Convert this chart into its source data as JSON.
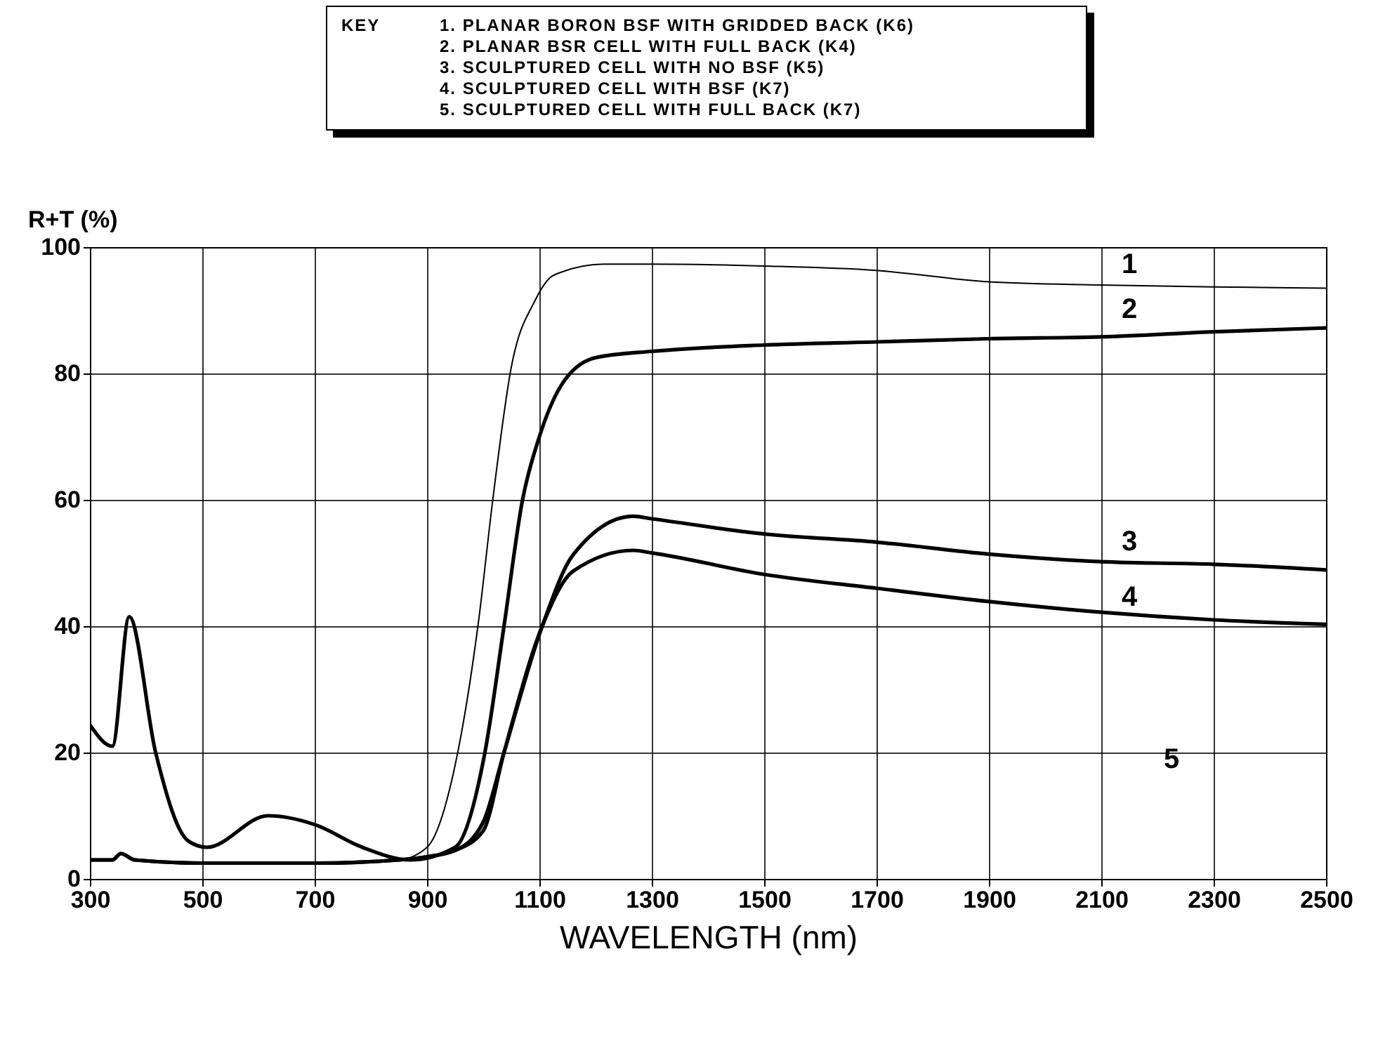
{
  "chart_data": {
    "type": "line",
    "xlabel": "WAVELENGTH (nm)",
    "ylabel": "R+T (%)",
    "legend_title": "KEY",
    "xlim": [
      300,
      2500
    ],
    "xticks": [
      300,
      500,
      700,
      900,
      1100,
      1300,
      1500,
      1700,
      1900,
      2100,
      2300,
      2500
    ],
    "ylim": [
      0,
      100
    ],
    "yticks": [
      0,
      20,
      40,
      60,
      80,
      100
    ],
    "grid": true,
    "series": [
      {
        "name": "1",
        "color": "#000000",
        "x": [
          300,
          340,
          355,
          380,
          500,
          700,
          850,
          900,
          950,
          992,
          1017,
          1050,
          1092,
          1117,
          1138,
          1215,
          1300,
          1500,
          1700,
          1900,
          2100,
          2300,
          2500
        ],
        "values": [
          3,
          3,
          4,
          3,
          2.5,
          2.5,
          3,
          5,
          18,
          41,
          60,
          81,
          91.5,
          95,
          96,
          97.3,
          97.3,
          97,
          96.3,
          94.5,
          94,
          93.7,
          93.5
        ]
      },
      {
        "name": "2",
        "color": "#000000",
        "x": [
          300,
          340,
          370,
          417,
          475,
          508,
          617,
          700,
          785,
          870,
          950,
          1003,
          1037,
          1070,
          1100,
          1138,
          1200,
          1300,
          1500,
          1700,
          1900,
          2100,
          2300,
          2500
        ],
        "values": [
          24.4,
          21,
          41.5,
          20,
          6,
          5,
          10,
          8.6,
          5,
          3,
          5,
          20,
          40,
          60,
          70,
          78,
          82.5,
          83.5,
          84.5,
          85,
          85.5,
          85.8,
          86.6,
          87.2
        ]
      },
      {
        "name": "3",
        "color": "#000000",
        "x": [
          300,
          340,
          355,
          380,
          500,
          700,
          850,
          900,
          950,
          1000,
          1037,
          1105,
          1160,
          1267,
          1300,
          1500,
          1700,
          1900,
          2100,
          2300,
          2500
        ],
        "values": [
          3,
          3,
          4,
          3,
          2.5,
          2.5,
          3,
          3.5,
          4.5,
          9,
          20,
          40,
          51.3,
          57.4,
          57,
          54.6,
          53.3,
          51.4,
          50.2,
          49.8,
          48.9
        ]
      },
      {
        "name": "4",
        "color": "#000000",
        "x": [
          300,
          340,
          355,
          380,
          500,
          700,
          850,
          900,
          950,
          1000,
          1037,
          1105,
          1160,
          1267,
          1300,
          1500,
          1700,
          1900,
          2100,
          2300,
          2500
        ],
        "values": [
          3,
          3,
          4,
          3,
          2.5,
          2.5,
          3,
          3.5,
          4.5,
          7.6,
          20,
          40,
          48.7,
          52,
          51.6,
          48.2,
          46,
          43.9,
          42.2,
          41,
          40.3
        ]
      }
    ],
    "annotations": [
      "1. PLANAR BORON BSF WITH GRIDDED BACK (K6)",
      "2. PLANAR BSR CELL WITH FULL BACK (K4)",
      "3. SCULPTURED CELL WITH NO BSF (K5)",
      "4. SCULPTURED CELL WITH BSF (K7)",
      "5. SCULPTURED CELL WITH FULL BACK (K7)",
      "5"
    ]
  }
}
